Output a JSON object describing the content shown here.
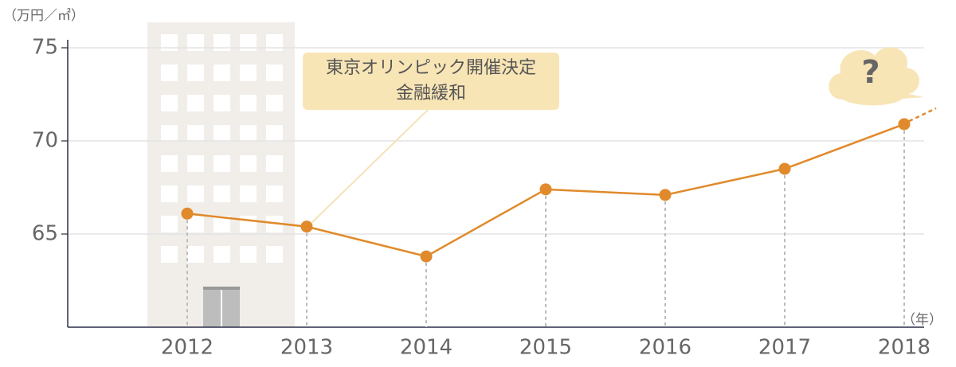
{
  "chart_data": {
    "type": "line",
    "y_unit": "（万円／㎡）",
    "x_unit": "（年）",
    "annotation": [
      "東京オリンピック開催決定",
      "金融緩和"
    ],
    "cloud_label": "?",
    "categories": [
      "2012",
      "2013",
      "2014",
      "2015",
      "2016",
      "2017",
      "2018"
    ],
    "series": [
      {
        "color": "#e08a2b",
        "values": [
          66.1,
          65.4,
          63.8,
          67.4,
          67.1,
          68.5,
          70.9
        ]
      }
    ],
    "ylim": [
      60,
      75
    ],
    "yticks": [
      65,
      70,
      75
    ],
    "grid": true
  }
}
